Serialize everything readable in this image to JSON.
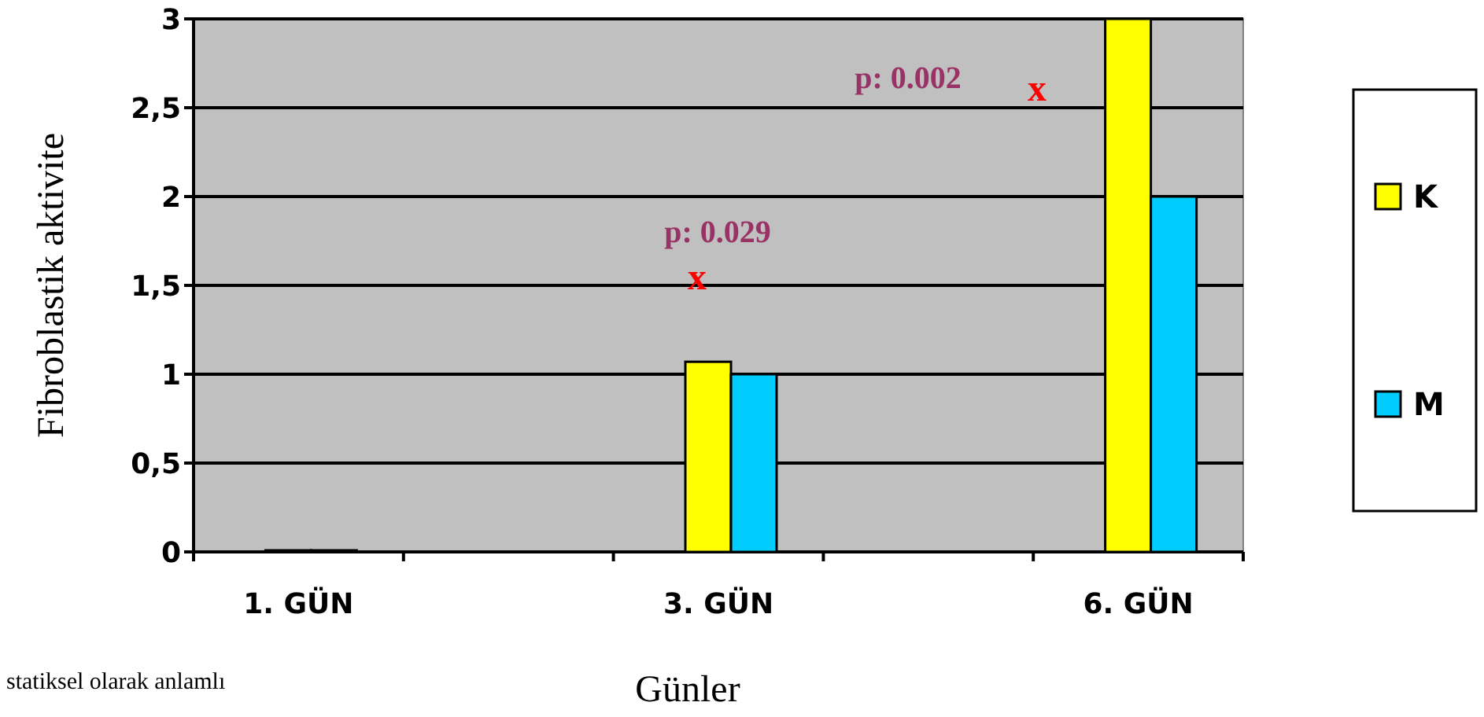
{
  "chart_data": {
    "type": "bar",
    "categories": [
      "1. GÜN",
      null,
      "3. GÜN",
      null,
      "6. GÜN"
    ],
    "series": [
      {
        "name": "K",
        "color": "#ffff00",
        "values": [
          0,
          null,
          1.07,
          null,
          3
        ]
      },
      {
        "name": "M",
        "color": "#00ccff",
        "values": [
          0,
          null,
          1,
          null,
          2
        ]
      }
    ],
    "ylabel": "Fibroblastik aktivite",
    "xlabel": "Günler",
    "ylim": [
      0,
      3
    ],
    "yticks": [
      {
        "value": 0,
        "label": "0"
      },
      {
        "value": 0.5,
        "label": "0,5"
      },
      {
        "value": 1,
        "label": "1"
      },
      {
        "value": 1.5,
        "label": "1,5"
      },
      {
        "value": 2,
        "label": "2"
      },
      {
        "value": 2.5,
        "label": "2,5"
      },
      {
        "value": 3,
        "label": "3"
      }
    ],
    "grid": "y",
    "legend": "right",
    "annotations": [
      "p: 0.029",
      "x",
      "p: 0.002",
      "x",
      "statiksel olarak anlamlı"
    ]
  }
}
